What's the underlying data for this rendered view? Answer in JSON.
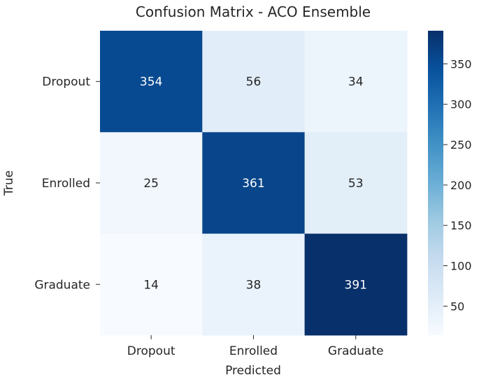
{
  "chart_data": {
    "type": "heatmap",
    "title": "Confusion Matrix - ACO Ensemble",
    "xlabel": "Predicted",
    "ylabel": "True",
    "x_categories": [
      "Dropout",
      "Enrolled",
      "Graduate"
    ],
    "y_categories": [
      "Dropout",
      "Enrolled",
      "Graduate"
    ],
    "values": [
      [
        354,
        56,
        34
      ],
      [
        25,
        361,
        53
      ],
      [
        14,
        38,
        391
      ]
    ],
    "colormap": "Blues",
    "colorbar": {
      "range": [
        14,
        391
      ],
      "ticks": [
        50,
        100,
        150,
        200,
        250,
        300,
        350
      ]
    }
  }
}
